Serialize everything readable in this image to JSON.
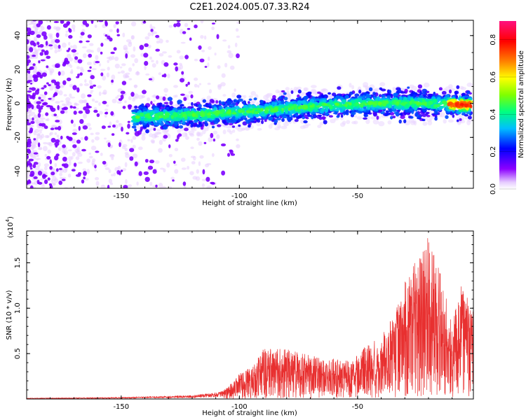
{
  "title": "C2E1.2024.005.07.33.R24",
  "colors": {
    "snr_line": "#e83030",
    "background": "#ffffff",
    "axis": "#000000"
  },
  "chart_data": [
    {
      "type": "heatmap",
      "xlabel": "Height of straight line (km)",
      "ylabel": "Frequency (Hz)",
      "xlim": [
        -190,
        -1
      ],
      "ylim": [
        -50,
        49
      ],
      "xticks": [
        -150,
        -100,
        -50
      ],
      "yticks": [
        -40,
        -20,
        0,
        20,
        40
      ],
      "xtick_labels": [
        "-150",
        "-100",
        "-50"
      ],
      "ytick_labels": [
        "-40",
        "-20",
        "0",
        "20",
        "40"
      ],
      "colorbar": {
        "label": "Normalized spectral amplitude",
        "range": [
          0,
          0.9
        ],
        "ticks": [
          0.0,
          0.2,
          0.4,
          0.6,
          0.8
        ],
        "tick_labels": [
          "0.0",
          "0.2",
          "0.4",
          "0.6",
          "0.8"
        ],
        "colormap": [
          "#ffffff",
          "#e6ccff",
          "#8b00ff",
          "#0000ff",
          "#00bfff",
          "#00ff80",
          "#80ff00",
          "#ffff00",
          "#ff8000",
          "#ff0000",
          "#ff1080"
        ]
      },
      "signal_band": {
        "x_range": [
          -145,
          -2
        ],
        "center_frequency_hz": [
          [
            -145,
            -8
          ],
          [
            -120,
            -7
          ],
          [
            -100,
            -5
          ],
          [
            -80,
            -3
          ],
          [
            -60,
            -1
          ],
          [
            -40,
            0
          ],
          [
            -20,
            0
          ],
          [
            -2,
            -1
          ]
        ],
        "half_width_hz": 5
      },
      "noise_region": {
        "x_range": [
          -190,
          -120
        ],
        "dominant_amplitude": 0.1
      }
    },
    {
      "type": "line",
      "xlabel": "Height of straight line (km)",
      "ylabel": "SNR (10 * v/v)",
      "multiplier_label": "(x10",
      "multiplier_exponent": "4",
      "multiplier_close": ")",
      "xlim": [
        -190,
        -1
      ],
      "ylim": [
        0,
        1.85
      ],
      "xticks": [
        -150,
        -100,
        -50
      ],
      "yticks": [
        0.5,
        1.0,
        1.5
      ],
      "xtick_labels": [
        "-150",
        "-100",
        "-50"
      ],
      "ytick_labels": [
        "0.5",
        "1.0",
        "1.5"
      ],
      "series": [
        {
          "envelope": [
            {
              "x": -190,
              "y": 0.01
            },
            {
              "x": -150,
              "y": 0.02
            },
            {
              "x": -120,
              "y": 0.04
            },
            {
              "x": -108,
              "y": 0.08
            },
            {
              "x": -103,
              "y": 0.18
            },
            {
              "x": -100,
              "y": 0.28
            },
            {
              "x": -95,
              "y": 0.35
            },
            {
              "x": -90,
              "y": 0.55
            },
            {
              "x": -80,
              "y": 0.55
            },
            {
              "x": -70,
              "y": 0.48
            },
            {
              "x": -60,
              "y": 0.45
            },
            {
              "x": -52,
              "y": 0.42
            },
            {
              "x": -48,
              "y": 0.55
            },
            {
              "x": -40,
              "y": 0.7
            },
            {
              "x": -35,
              "y": 0.9
            },
            {
              "x": -30,
              "y": 1.3
            },
            {
              "x": -25,
              "y": 1.55
            },
            {
              "x": -20,
              "y": 1.8
            },
            {
              "x": -15,
              "y": 1.4
            },
            {
              "x": -10,
              "y": 0.85
            },
            {
              "x": -6,
              "y": 1.3
            },
            {
              "x": -1,
              "y": 1.0
            }
          ]
        }
      ]
    }
  ]
}
